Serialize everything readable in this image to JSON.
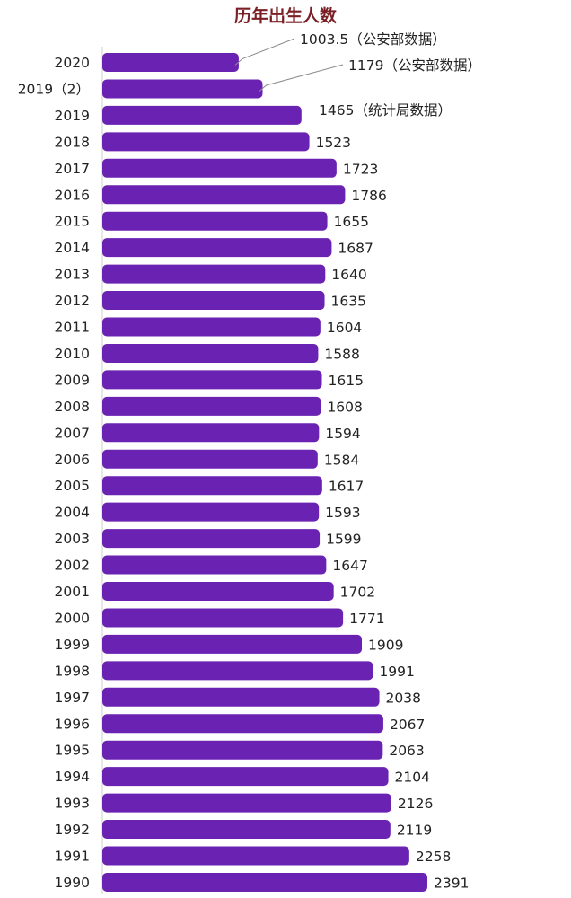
{
  "chart_data": {
    "type": "bar",
    "orientation": "horizontal",
    "title": "历年出生人数",
    "xlabel": "",
    "ylabel": "",
    "bar_color": "#6a22b2",
    "xlim": [
      0,
      2500
    ],
    "grid": false,
    "legend": "none",
    "categories": [
      "2020",
      "2019（2）",
      "2019",
      "2018",
      "2017",
      "2016",
      "2015",
      "2014",
      "2013",
      "2012",
      "2011",
      "2010",
      "2009",
      "2008",
      "2007",
      "2006",
      "2005",
      "2004",
      "2003",
      "2002",
      "2001",
      "2000",
      "1999",
      "1998",
      "1997",
      "1996",
      "1995",
      "1994",
      "1993",
      "1992",
      "1991",
      "1990"
    ],
    "values": [
      1003.5,
      1179,
      1465,
      1523,
      1723,
      1786,
      1655,
      1687,
      1640,
      1635,
      1604,
      1588,
      1615,
      1608,
      1594,
      1584,
      1617,
      1593,
      1599,
      1647,
      1702,
      1771,
      1909,
      1991,
      2038,
      2067,
      2063,
      2104,
      2126,
      2119,
      2258,
      2391
    ],
    "data_labels": [
      "1003.5（公安部数据）",
      "1179（公安部数据）",
      "1465（统计局数据）",
      "1523",
      "1723",
      "1786",
      "1655",
      "1687",
      "1640",
      "1635",
      "1604",
      "1588",
      "1615",
      "1608",
      "1594",
      "1584",
      "1617",
      "1593",
      "1599",
      "1647",
      "1702",
      "1771",
      "1909",
      "1991",
      "2038",
      "2067",
      "2063",
      "2104",
      "2126",
      "2119",
      "2258",
      "2391"
    ]
  }
}
